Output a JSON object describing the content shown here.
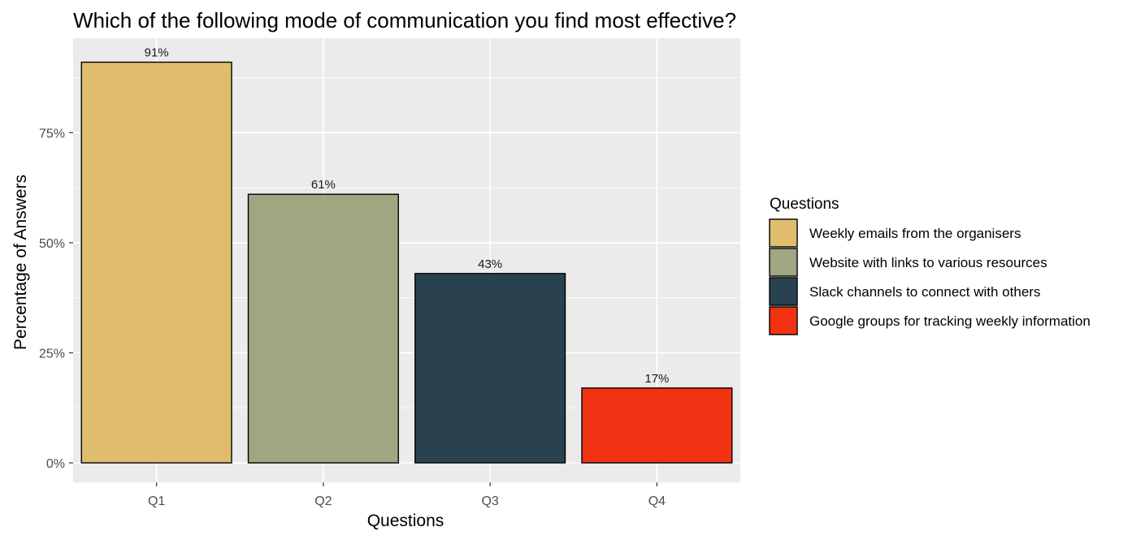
{
  "chart_data": {
    "type": "bar",
    "title": "Which of the following mode of communication you find most effective?",
    "xlabel": "Questions",
    "ylabel": "Percentage of Answers",
    "categories": [
      "Q1",
      "Q2",
      "Q3",
      "Q4"
    ],
    "values": [
      91,
      61,
      43,
      17
    ],
    "value_labels": [
      "91%",
      "61%",
      "43%",
      "17%"
    ],
    "ylim": [
      0,
      95
    ],
    "yticks": [
      0,
      25,
      50,
      75
    ],
    "ytick_labels": [
      "0%",
      "25%",
      "50%",
      "75%"
    ],
    "grid": true,
    "colors": [
      "#e0bd6e",
      "#9fa681",
      "#2a4150",
      "#f13213"
    ],
    "panel_background": "#ebebeb",
    "legend": {
      "title": "Questions",
      "position": "right",
      "entries": [
        "Weekly emails from the organisers",
        "Website with links to various resources",
        "Slack channels to connect with others",
        "Google groups for tracking weekly information"
      ]
    }
  }
}
